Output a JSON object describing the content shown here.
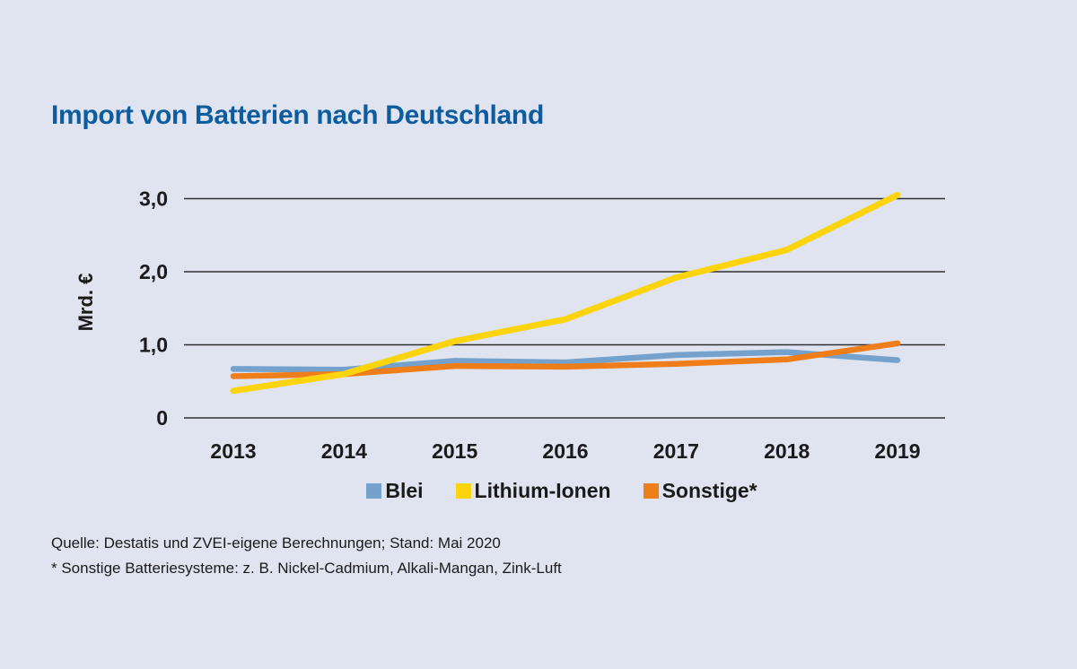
{
  "page": {
    "background": "#e0e4f0"
  },
  "header": {
    "title": "Import von Batterien nach Deutschland",
    "title_color": "#0d5c9e"
  },
  "chart_data": {
    "type": "line",
    "title": "Import von Batterien nach Deutschland",
    "xlabel": "",
    "ylabel": "Mrd. €",
    "x": [
      "2013",
      "2014",
      "2015",
      "2016",
      "2017",
      "2018",
      "2019"
    ],
    "series": [
      {
        "name": "Blei",
        "color": "#74a2cc",
        "values": [
          0.67,
          0.66,
          0.78,
          0.76,
          0.86,
          0.9,
          0.79
        ]
      },
      {
        "name": "Lithium-Ionen",
        "color": "#fbd40e",
        "values": [
          0.37,
          0.6,
          1.05,
          1.35,
          1.92,
          2.3,
          3.05
        ]
      },
      {
        "name": "Sonstige*",
        "color": "#ef7d1a",
        "values": [
          0.57,
          0.6,
          0.71,
          0.7,
          0.74,
          0.8,
          1.02
        ]
      }
    ],
    "yticks": [
      {
        "value": 0,
        "label": "0"
      },
      {
        "value": 1,
        "label": "1,0"
      },
      {
        "value": 2,
        "label": "2,0"
      },
      {
        "value": 3,
        "label": "3,0"
      }
    ],
    "ylim": [
      0,
      3.3
    ],
    "grid": "horizontal",
    "gridline_color": "#2f2f2f",
    "legend_position": "bottom"
  },
  "footer": {
    "source": "Quelle: Destatis und ZVEI-eigene Berechnungen; Stand: Mai 2020",
    "footnote": "* Sonstige Batteriesysteme: z. B. Nickel-Cadmium, Alkali-Mangan, Zink-Luft"
  }
}
